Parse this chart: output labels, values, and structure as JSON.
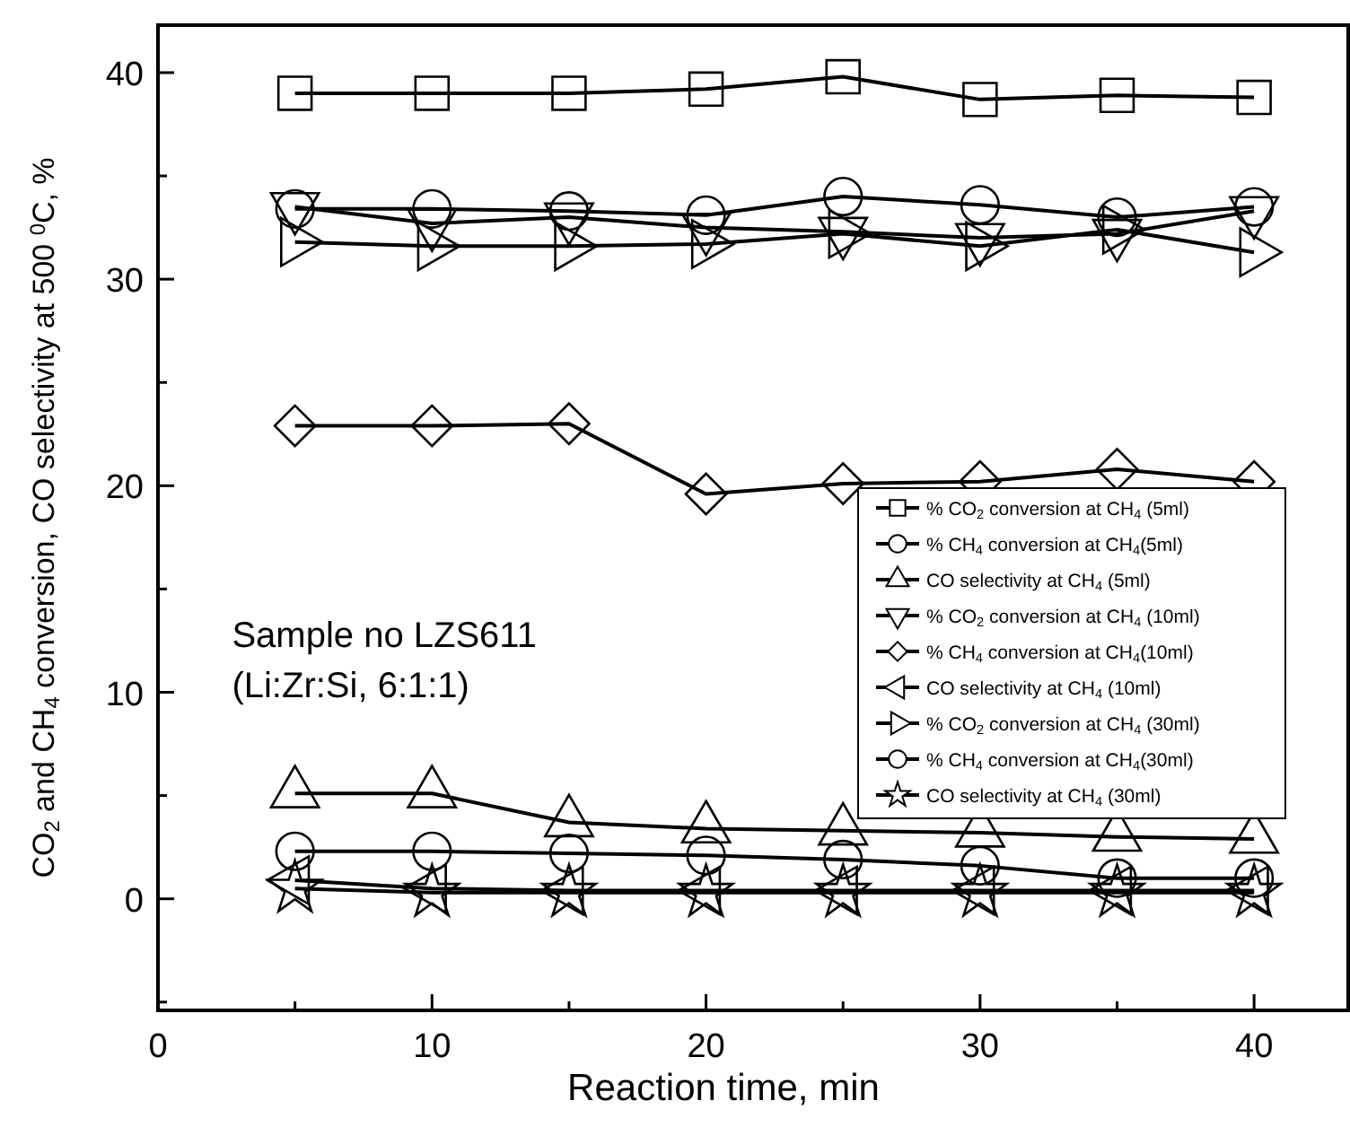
{
  "chart_data": {
    "type": "line",
    "xlabel": "Reaction time, min",
    "ylabel": "CO$_{2}$ and CH$_{4}$ conversion,  CO selectivity at 500 $^{0}$C, %",
    "x": [
      5,
      10,
      15,
      20,
      25,
      30,
      35,
      40
    ],
    "xlim": [
      0,
      43.5
    ],
    "ylim": [
      -5.4,
      42.3
    ],
    "xticks": [
      0,
      {
        "value": 5,
        "label": null
      },
      10,
      {
        "value": 15,
        "label": null
      },
      20,
      {
        "value": 25,
        "label": null
      },
      30,
      {
        "value": 35,
        "label": null
      },
      40
    ],
    "yticks": [
      {
        "value": -5,
        "label": null
      },
      0,
      {
        "value": 5,
        "label": null
      },
      10,
      {
        "value": 15,
        "label": null
      },
      20,
      {
        "value": 25,
        "label": null
      },
      30,
      {
        "value": 35,
        "label": null
      },
      40
    ],
    "grid": false,
    "legend": "right",
    "line_style": "solid",
    "annotations": [
      "Sample no LZS611",
      "(Li:Zr:Si, 6:1:1)"
    ],
    "series": [
      {
        "name": "% CO$_{2}$ conversion  at CH$_{4}$ (5ml)",
        "color": "#000000",
        "marker": "square",
        "values": [
          39.0,
          39.0,
          39.0,
          39.2,
          39.8,
          38.7,
          38.9,
          38.8
        ]
      },
      {
        "name": "% CH$_{4}$ conversion at CH$_{4}$(5ml)",
        "color": "#000000",
        "marker": "circle",
        "values": [
          2.3,
          2.3,
          2.2,
          2.1,
          1.9,
          1.6,
          1.0,
          1.0
        ]
      },
      {
        "name": "CO selectivity at CH$_{4}$ (5ml)",
        "color": "#000000",
        "marker": "triangle",
        "values": [
          5.1,
          5.1,
          3.7,
          3.4,
          3.3,
          3.2,
          3.0,
          2.9
        ]
      },
      {
        "name": "% CO$_{2}$ conversion  at CH$_{4}$ (10ml)",
        "color": "#000000",
        "marker": "triangle-down",
        "values": [
          33.5,
          32.7,
          33.0,
          32.5,
          32.3,
          32.0,
          32.2,
          33.3
        ]
      },
      {
        "name": "% CH$_{4}$ conversion at CH$_{4}$(10ml)",
        "color": "#000000",
        "marker": "diamond",
        "values": [
          22.9,
          22.9,
          23.0,
          19.6,
          20.1,
          20.2,
          20.8,
          20.2
        ]
      },
      {
        "name": "CO selectivity at CH$_{4}$ (10ml)",
        "color": "#000000",
        "marker": "triangle-left",
        "values": [
          0.9,
          0.5,
          0.4,
          0.4,
          0.4,
          0.4,
          0.4,
          0.4
        ]
      },
      {
        "name": "% CO$_{2}$ conversion  at CH$_{4}$ (30ml)",
        "color": "#000000",
        "marker": "triangle-right",
        "values": [
          31.8,
          31.6,
          31.6,
          31.7,
          32.2,
          31.6,
          32.4,
          31.3
        ]
      },
      {
        "name": "% CH$_{4}$ conversion at CH$_{4}$(30ml)",
        "color": "#000000",
        "marker": "circle",
        "values": [
          33.4,
          33.4,
          33.3,
          33.1,
          34.0,
          33.6,
          33.0,
          33.5
        ]
      },
      {
        "name": "CO selectivity at CH$_{4}$ (30ml)",
        "color": "#000000",
        "marker": "star",
        "values": [
          0.5,
          0.3,
          0.3,
          0.3,
          0.3,
          0.3,
          0.3,
          0.3
        ]
      }
    ]
  }
}
